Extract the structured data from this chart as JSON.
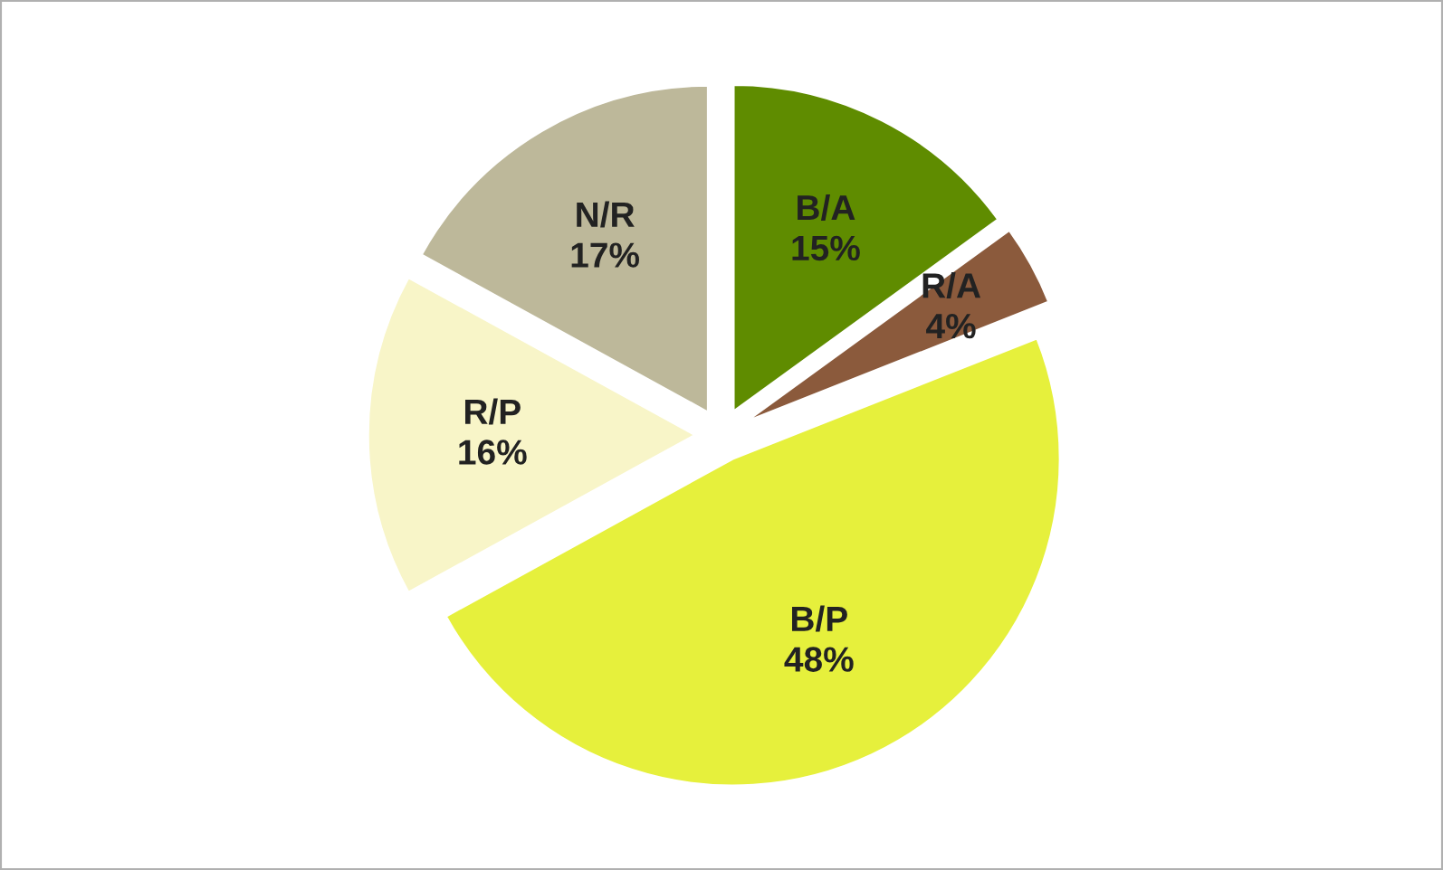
{
  "chart_data": {
    "type": "pie",
    "categories": [
      "B/A",
      "R/A",
      "B/P",
      "R/P",
      "N/R"
    ],
    "values": [
      15,
      4,
      48,
      16,
      17
    ],
    "value_labels": [
      "15%",
      "4%",
      "48%",
      "16%",
      "17%"
    ],
    "colors": [
      "#5f8c00",
      "#8b5a3c",
      "#e6f03c",
      "#f8f5c8",
      "#bdb89a"
    ]
  }
}
